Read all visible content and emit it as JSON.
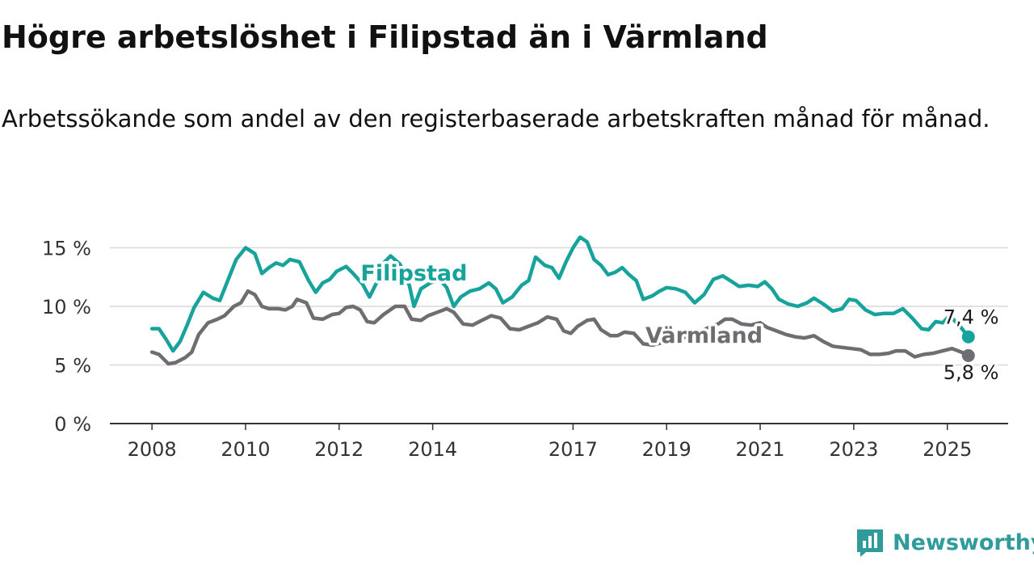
{
  "title": "Högre arbetslöshet i Filipstad än i Värmland",
  "subtitle": "Arbetssökande som andel av den registerbaserade arbetskraften månad för månad.",
  "brand": {
    "name": "Newsworthy",
    "icon": "newsworthy-logo-icon"
  },
  "colors": {
    "filipstad": "#17a39b",
    "varmland": "#6d6d72",
    "grid": "#d9d9d9",
    "axis": "#333333"
  },
  "chart_data": {
    "type": "line",
    "title": "Högre arbetslöshet i Filipstad än i Värmland",
    "y_ticks": [
      0,
      5,
      10,
      15
    ],
    "y_tick_labels": [
      "0 %",
      "5 %",
      "10 %",
      "15 %"
    ],
    "x_ticks": [
      2008,
      2010,
      2012,
      2014,
      2017,
      2019,
      2021,
      2023,
      2025
    ],
    "ylim": [
      0,
      16
    ],
    "xlim": [
      2007.1,
      2026.3
    ],
    "grid": true,
    "series": [
      {
        "name": "Filipstad",
        "color": "#17a39b",
        "last_label": "7,4 %",
        "points": [
          [
            2008.0,
            8.1
          ],
          [
            2008.15,
            8.1
          ],
          [
            2008.3,
            7.2
          ],
          [
            2008.45,
            6.2
          ],
          [
            2008.6,
            7.0
          ],
          [
            2008.75,
            8.4
          ],
          [
            2008.9,
            9.9
          ],
          [
            2009.1,
            11.2
          ],
          [
            2009.3,
            10.7
          ],
          [
            2009.45,
            10.5
          ],
          [
            2009.6,
            12.0
          ],
          [
            2009.8,
            14.0
          ],
          [
            2010.0,
            15.0
          ],
          [
            2010.2,
            14.5
          ],
          [
            2010.35,
            12.8
          ],
          [
            2010.5,
            13.3
          ],
          [
            2010.65,
            13.7
          ],
          [
            2010.8,
            13.5
          ],
          [
            2010.95,
            14.0
          ],
          [
            2011.15,
            13.8
          ],
          [
            2011.35,
            12.2
          ],
          [
            2011.5,
            11.2
          ],
          [
            2011.65,
            12.0
          ],
          [
            2011.8,
            12.3
          ],
          [
            2011.95,
            13.0
          ],
          [
            2012.15,
            13.4
          ],
          [
            2012.3,
            12.8
          ],
          [
            2012.5,
            11.9
          ],
          [
            2012.65,
            10.8
          ],
          [
            2012.8,
            12.0
          ],
          [
            2012.95,
            13.7
          ],
          [
            2013.1,
            14.3
          ],
          [
            2013.3,
            13.6
          ],
          [
            2013.5,
            11.8
          ],
          [
            2013.6,
            10.0
          ],
          [
            2013.75,
            11.5
          ],
          [
            2013.95,
            12.0
          ],
          [
            2014.15,
            12.3
          ],
          [
            2014.3,
            11.6
          ],
          [
            2014.45,
            10.0
          ],
          [
            2014.6,
            10.8
          ],
          [
            2014.8,
            11.3
          ],
          [
            2015.0,
            11.5
          ],
          [
            2015.2,
            12.0
          ],
          [
            2015.35,
            11.5
          ],
          [
            2015.5,
            10.3
          ],
          [
            2015.7,
            10.8
          ],
          [
            2015.9,
            11.8
          ],
          [
            2016.05,
            12.2
          ],
          [
            2016.2,
            14.2
          ],
          [
            2016.4,
            13.5
          ],
          [
            2016.55,
            13.3
          ],
          [
            2016.7,
            12.4
          ],
          [
            2016.85,
            13.8
          ],
          [
            2017.0,
            15.0
          ],
          [
            2017.15,
            15.9
          ],
          [
            2017.3,
            15.5
          ],
          [
            2017.45,
            14.0
          ],
          [
            2017.6,
            13.5
          ],
          [
            2017.75,
            12.7
          ],
          [
            2017.9,
            12.9
          ],
          [
            2018.05,
            13.3
          ],
          [
            2018.2,
            12.7
          ],
          [
            2018.35,
            12.2
          ],
          [
            2018.5,
            10.6
          ],
          [
            2018.7,
            10.9
          ],
          [
            2018.85,
            11.3
          ],
          [
            2019.0,
            11.6
          ],
          [
            2019.2,
            11.5
          ],
          [
            2019.4,
            11.2
          ],
          [
            2019.6,
            10.3
          ],
          [
            2019.8,
            11.0
          ],
          [
            2020.0,
            12.3
          ],
          [
            2020.2,
            12.6
          ],
          [
            2020.4,
            12.1
          ],
          [
            2020.55,
            11.7
          ],
          [
            2020.75,
            11.8
          ],
          [
            2020.95,
            11.7
          ],
          [
            2021.1,
            12.1
          ],
          [
            2021.25,
            11.5
          ],
          [
            2021.4,
            10.6
          ],
          [
            2021.6,
            10.2
          ],
          [
            2021.8,
            10.0
          ],
          [
            2022.0,
            10.3
          ],
          [
            2022.15,
            10.7
          ],
          [
            2022.35,
            10.2
          ],
          [
            2022.55,
            9.6
          ],
          [
            2022.75,
            9.8
          ],
          [
            2022.9,
            10.6
          ],
          [
            2023.05,
            10.5
          ],
          [
            2023.25,
            9.7
          ],
          [
            2023.45,
            9.3
          ],
          [
            2023.65,
            9.4
          ],
          [
            2023.85,
            9.4
          ],
          [
            2024.05,
            9.8
          ],
          [
            2024.25,
            9.0
          ],
          [
            2024.45,
            8.1
          ],
          [
            2024.6,
            8.0
          ],
          [
            2024.75,
            8.7
          ],
          [
            2024.9,
            8.6
          ],
          [
            2025.05,
            9.2
          ],
          [
            2025.25,
            8.4
          ],
          [
            2025.45,
            7.4
          ]
        ]
      },
      {
        "name": "Värmland",
        "color": "#6d6d72",
        "last_label": "5,8 %",
        "points": [
          [
            2008.0,
            6.1
          ],
          [
            2008.15,
            5.9
          ],
          [
            2008.35,
            5.1
          ],
          [
            2008.5,
            5.2
          ],
          [
            2008.7,
            5.6
          ],
          [
            2008.85,
            6.1
          ],
          [
            2009.0,
            7.6
          ],
          [
            2009.2,
            8.6
          ],
          [
            2009.4,
            8.9
          ],
          [
            2009.55,
            9.2
          ],
          [
            2009.75,
            10.0
          ],
          [
            2009.9,
            10.3
          ],
          [
            2010.05,
            11.3
          ],
          [
            2010.2,
            11.0
          ],
          [
            2010.35,
            10.0
          ],
          [
            2010.5,
            9.8
          ],
          [
            2010.7,
            9.8
          ],
          [
            2010.85,
            9.7
          ],
          [
            2011.0,
            10.0
          ],
          [
            2011.1,
            10.6
          ],
          [
            2011.3,
            10.3
          ],
          [
            2011.45,
            9.0
          ],
          [
            2011.65,
            8.9
          ],
          [
            2011.85,
            9.3
          ],
          [
            2012.0,
            9.4
          ],
          [
            2012.15,
            9.9
          ],
          [
            2012.3,
            10.0
          ],
          [
            2012.45,
            9.7
          ],
          [
            2012.6,
            8.7
          ],
          [
            2012.75,
            8.6
          ],
          [
            2012.95,
            9.3
          ],
          [
            2013.2,
            10.0
          ],
          [
            2013.4,
            10.0
          ],
          [
            2013.55,
            8.9
          ],
          [
            2013.75,
            8.8
          ],
          [
            2013.9,
            9.2
          ],
          [
            2014.1,
            9.5
          ],
          [
            2014.3,
            9.8
          ],
          [
            2014.45,
            9.5
          ],
          [
            2014.65,
            8.5
          ],
          [
            2014.85,
            8.4
          ],
          [
            2015.05,
            8.8
          ],
          [
            2015.25,
            9.2
          ],
          [
            2015.45,
            9.0
          ],
          [
            2015.65,
            8.1
          ],
          [
            2015.85,
            8.0
          ],
          [
            2016.05,
            8.3
          ],
          [
            2016.25,
            8.6
          ],
          [
            2016.45,
            9.1
          ],
          [
            2016.65,
            8.9
          ],
          [
            2016.8,
            7.9
          ],
          [
            2016.95,
            7.7
          ],
          [
            2017.1,
            8.3
          ],
          [
            2017.3,
            8.8
          ],
          [
            2017.45,
            8.9
          ],
          [
            2017.6,
            8.0
          ],
          [
            2017.8,
            7.5
          ],
          [
            2017.95,
            7.5
          ],
          [
            2018.1,
            7.8
          ],
          [
            2018.3,
            7.7
          ],
          [
            2018.5,
            6.8
          ],
          [
            2018.7,
            6.7
          ],
          [
            2018.9,
            6.9
          ],
          [
            2019.1,
            7.0
          ],
          [
            2019.3,
            7.2
          ],
          [
            2019.5,
            7.6
          ],
          [
            2019.7,
            7.8
          ],
          [
            2019.9,
            8.2
          ],
          [
            2020.1,
            8.5
          ],
          [
            2020.25,
            8.9
          ],
          [
            2020.4,
            8.9
          ],
          [
            2020.6,
            8.5
          ],
          [
            2020.8,
            8.4
          ],
          [
            2021.0,
            8.6
          ],
          [
            2021.15,
            8.2
          ],
          [
            2021.35,
            7.9
          ],
          [
            2021.55,
            7.6
          ],
          [
            2021.75,
            7.4
          ],
          [
            2021.95,
            7.3
          ],
          [
            2022.15,
            7.5
          ],
          [
            2022.35,
            7.0
          ],
          [
            2022.55,
            6.6
          ],
          [
            2022.75,
            6.5
          ],
          [
            2022.95,
            6.4
          ],
          [
            2023.15,
            6.3
          ],
          [
            2023.35,
            5.9
          ],
          [
            2023.55,
            5.9
          ],
          [
            2023.75,
            6.0
          ],
          [
            2023.9,
            6.2
          ],
          [
            2024.1,
            6.2
          ],
          [
            2024.3,
            5.7
          ],
          [
            2024.5,
            5.9
          ],
          [
            2024.7,
            6.0
          ],
          [
            2024.9,
            6.2
          ],
          [
            2025.1,
            6.4
          ],
          [
            2025.3,
            6.1
          ],
          [
            2025.45,
            5.8
          ]
        ]
      }
    ],
    "annotations": [
      {
        "text": "Filipstad",
        "series": "Filipstad",
        "x": 2013.6,
        "y": 12.2
      },
      {
        "text": "Värmland",
        "series": "Värmland",
        "x": 2019.8,
        "y": 6.9
      }
    ]
  }
}
